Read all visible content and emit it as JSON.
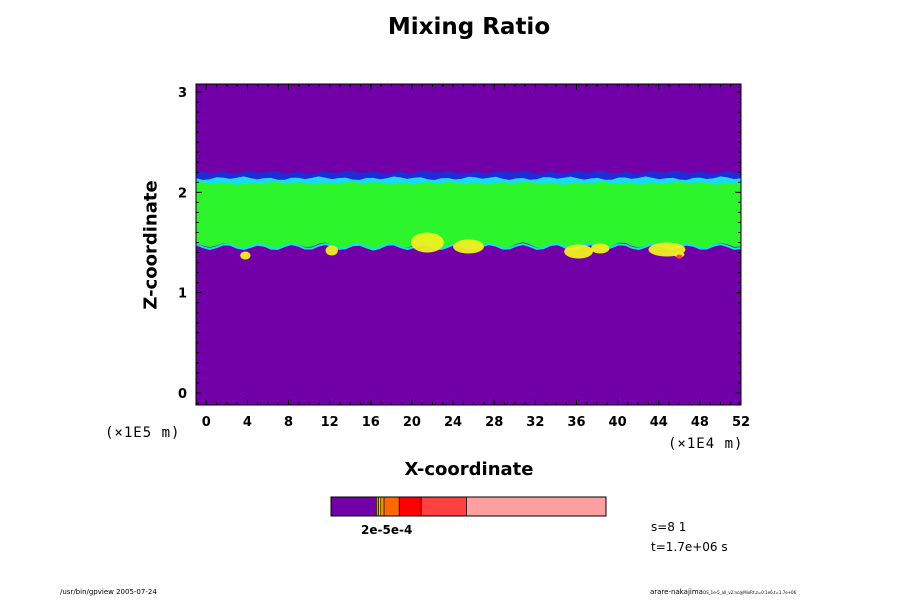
{
  "chart_data": {
    "type": "heatmap",
    "title": "Mixing Ratio",
    "xlabel": "X-coordinate",
    "ylabel": "Z-coordinate",
    "x_scale_factor": "(×1E4 m)",
    "y_scale_factor": "(×1E5 m)",
    "xlim": [
      -1,
      52
    ],
    "ylim": [
      -0.12,
      3.08
    ],
    "x_ticks": [
      0,
      4,
      8,
      12,
      16,
      20,
      24,
      28,
      32,
      36,
      40,
      44,
      48,
      52
    ],
    "y_ticks": [
      0,
      1,
      2,
      3
    ],
    "field_layers": [
      {
        "name": "background",
        "color": "#7200a8",
        "z_from": -0.12,
        "z_to": 3.08
      },
      {
        "name": "dark-blue-band",
        "color": "#1e2bd6",
        "z_from": 2.12,
        "z_to": 2.2
      },
      {
        "name": "cyan-band",
        "color": "#19dcee",
        "z_from": 2.06,
        "z_to": 2.14
      },
      {
        "name": "green-layer",
        "color": "#2cf52c",
        "z_from": 1.46,
        "z_to": 2.09
      },
      {
        "name": "yellow-patches",
        "color": "#f0f020",
        "z_from": 1.36,
        "z_to": 1.6
      }
    ],
    "colorbar": {
      "colors": [
        "#7200a8",
        "#ff8c00",
        "#ffd600",
        "#ff8c00",
        "#ff6a00",
        "#ff0000",
        "#ff4040",
        "#ffa0a0"
      ],
      "fractions": [
        0.165,
        0.008,
        0.008,
        0.012,
        0.055,
        0.08,
        0.165,
        0.507
      ],
      "label": "2e-5e-4"
    },
    "annotations": {
      "s": "s=8 1",
      "t": "t=1.7e+06 s"
    },
    "footer_left": "/usr/bin/gpview 2005-07-24",
    "footer_right": "arare-nakajima",
    "footer_right_small": "OS_1e-5_all_v2.nc@MixRt,z=0:1e6,t=1.7e+06"
  }
}
